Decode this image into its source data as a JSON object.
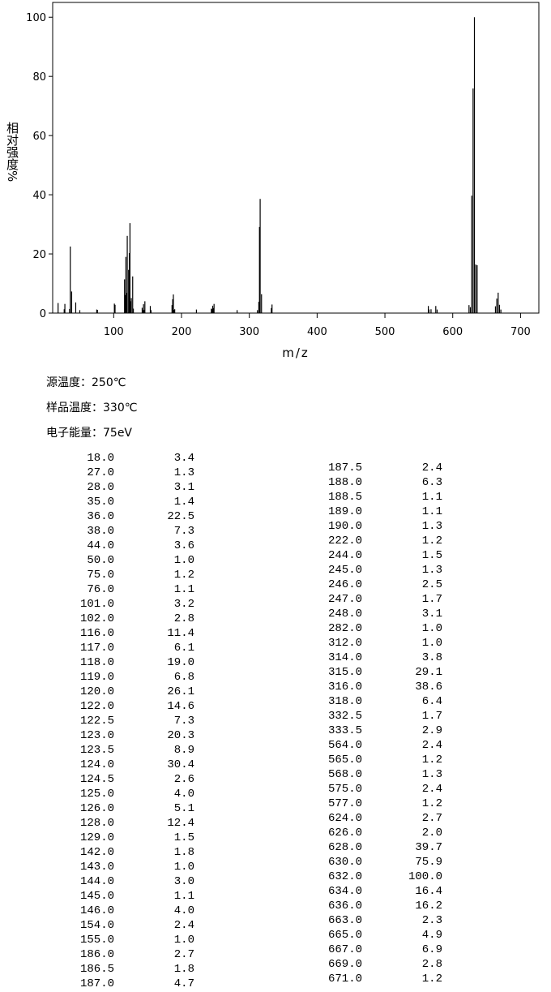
{
  "chart_data": {
    "type": "stem",
    "xlabel": "m/z",
    "ylabel": "相对强度%",
    "xlim": [
      10,
      727
    ],
    "ylim": [
      0,
      105
    ],
    "xticks": [
      100,
      200,
      300,
      400,
      500,
      600,
      700
    ],
    "yticks": [
      0,
      20,
      40,
      60,
      80,
      100
    ],
    "color": "#000000",
    "x": [
      18,
      27,
      28,
      35,
      36,
      38,
      44,
      50,
      75,
      76,
      101,
      102,
      116,
      117,
      118,
      119,
      120,
      122,
      122.5,
      123,
      123.5,
      124,
      124.5,
      125,
      126,
      128,
      129,
      142,
      143,
      144,
      145,
      146,
      154,
      155,
      186,
      186.5,
      187,
      187.5,
      188,
      188.5,
      189,
      190,
      222,
      244,
      245,
      246,
      247,
      248,
      282,
      312,
      314,
      315,
      316,
      318,
      332.5,
      333.5,
      564,
      565,
      568,
      575,
      577,
      624,
      626,
      628,
      630,
      632,
      634,
      636,
      663,
      665,
      667,
      669,
      671
    ],
    "x_labels": [
      "18.0",
      "27.0",
      "28.0",
      "35.0",
      "36.0",
      "38.0",
      "44.0",
      "50.0",
      "75.0",
      "76.0",
      "101.0",
      "102.0",
      "116.0",
      "117.0",
      "118.0",
      "119.0",
      "120.0",
      "122.0",
      "122.5",
      "123.0",
      "123.5",
      "124.0",
      "124.5",
      "125.0",
      "126.0",
      "128.0",
      "129.0",
      "142.0",
      "143.0",
      "144.0",
      "145.0",
      "146.0",
      "154.0",
      "155.0",
      "186.0",
      "186.5",
      "187.0",
      "187.5",
      "188.0",
      "188.5",
      "189.0",
      "190.0",
      "222.0",
      "244.0",
      "245.0",
      "246.0",
      "247.0",
      "248.0",
      "282.0",
      "312.0",
      "314.0",
      "315.0",
      "316.0",
      "318.0",
      "332.5",
      "333.5",
      "564.0",
      "565.0",
      "568.0",
      "575.0",
      "577.0",
      "624.0",
      "626.0",
      "628.0",
      "630.0",
      "632.0",
      "634.0",
      "636.0",
      "663.0",
      "665.0",
      "667.0",
      "669.0",
      "671.0"
    ],
    "values": [
      3.4,
      1.3,
      3.1,
      1.4,
      22.5,
      7.3,
      3.6,
      1,
      1.2,
      1.1,
      3.2,
      2.8,
      11.4,
      6.1,
      19,
      6.8,
      26.1,
      14.6,
      7.3,
      20.3,
      8.9,
      30.4,
      2.6,
      4,
      5.1,
      12.4,
      1.5,
      1.8,
      1,
      3,
      1.1,
      4,
      2.4,
      1,
      2.7,
      1.8,
      4.7,
      2.4,
      6.3,
      1.1,
      1.1,
      1.3,
      1.2,
      1.5,
      1.3,
      2.5,
      1.7,
      3.1,
      1,
      1,
      3.8,
      29.1,
      38.6,
      6.4,
      1.7,
      2.9,
      2.4,
      1.2,
      1.3,
      2.4,
      1.2,
      2.7,
      2,
      39.7,
      75.9,
      100,
      16.4,
      16.2,
      2.3,
      4.9,
      6.9,
      2.8,
      1.2
    ],
    "value_labels": [
      "3.4",
      "1.3",
      "3.1",
      "1.4",
      "22.5",
      "7.3",
      "3.6",
      "1.0",
      "1.2",
      "1.1",
      "3.2",
      "2.8",
      "11.4",
      "6.1",
      "19.0",
      "6.8",
      "26.1",
      "14.6",
      "7.3",
      "20.3",
      "8.9",
      "30.4",
      "2.6",
      "4.0",
      "5.1",
      "12.4",
      "1.5",
      "1.8",
      "1.0",
      "3.0",
      "1.1",
      "4.0",
      "2.4",
      "1.0",
      "2.7",
      "1.8",
      "4.7",
      "2.4",
      "6.3",
      "1.1",
      "1.1",
      "1.3",
      "1.2",
      "1.5",
      "1.3",
      "2.5",
      "1.7",
      "3.1",
      "1.0",
      "1.0",
      "3.8",
      "29.1",
      "38.6",
      "6.4",
      "1.7",
      "2.9",
      "2.4",
      "1.2",
      "1.3",
      "2.4",
      "1.2",
      "2.7",
      "2.0",
      "39.7",
      "75.9",
      "100.0",
      "16.4",
      "16.2",
      "2.3",
      "4.9",
      "6.9",
      "2.8",
      "1.2"
    ]
  },
  "info": [
    "源温度：250℃",
    "样品温度：330℃",
    "电子能量：75eV"
  ]
}
